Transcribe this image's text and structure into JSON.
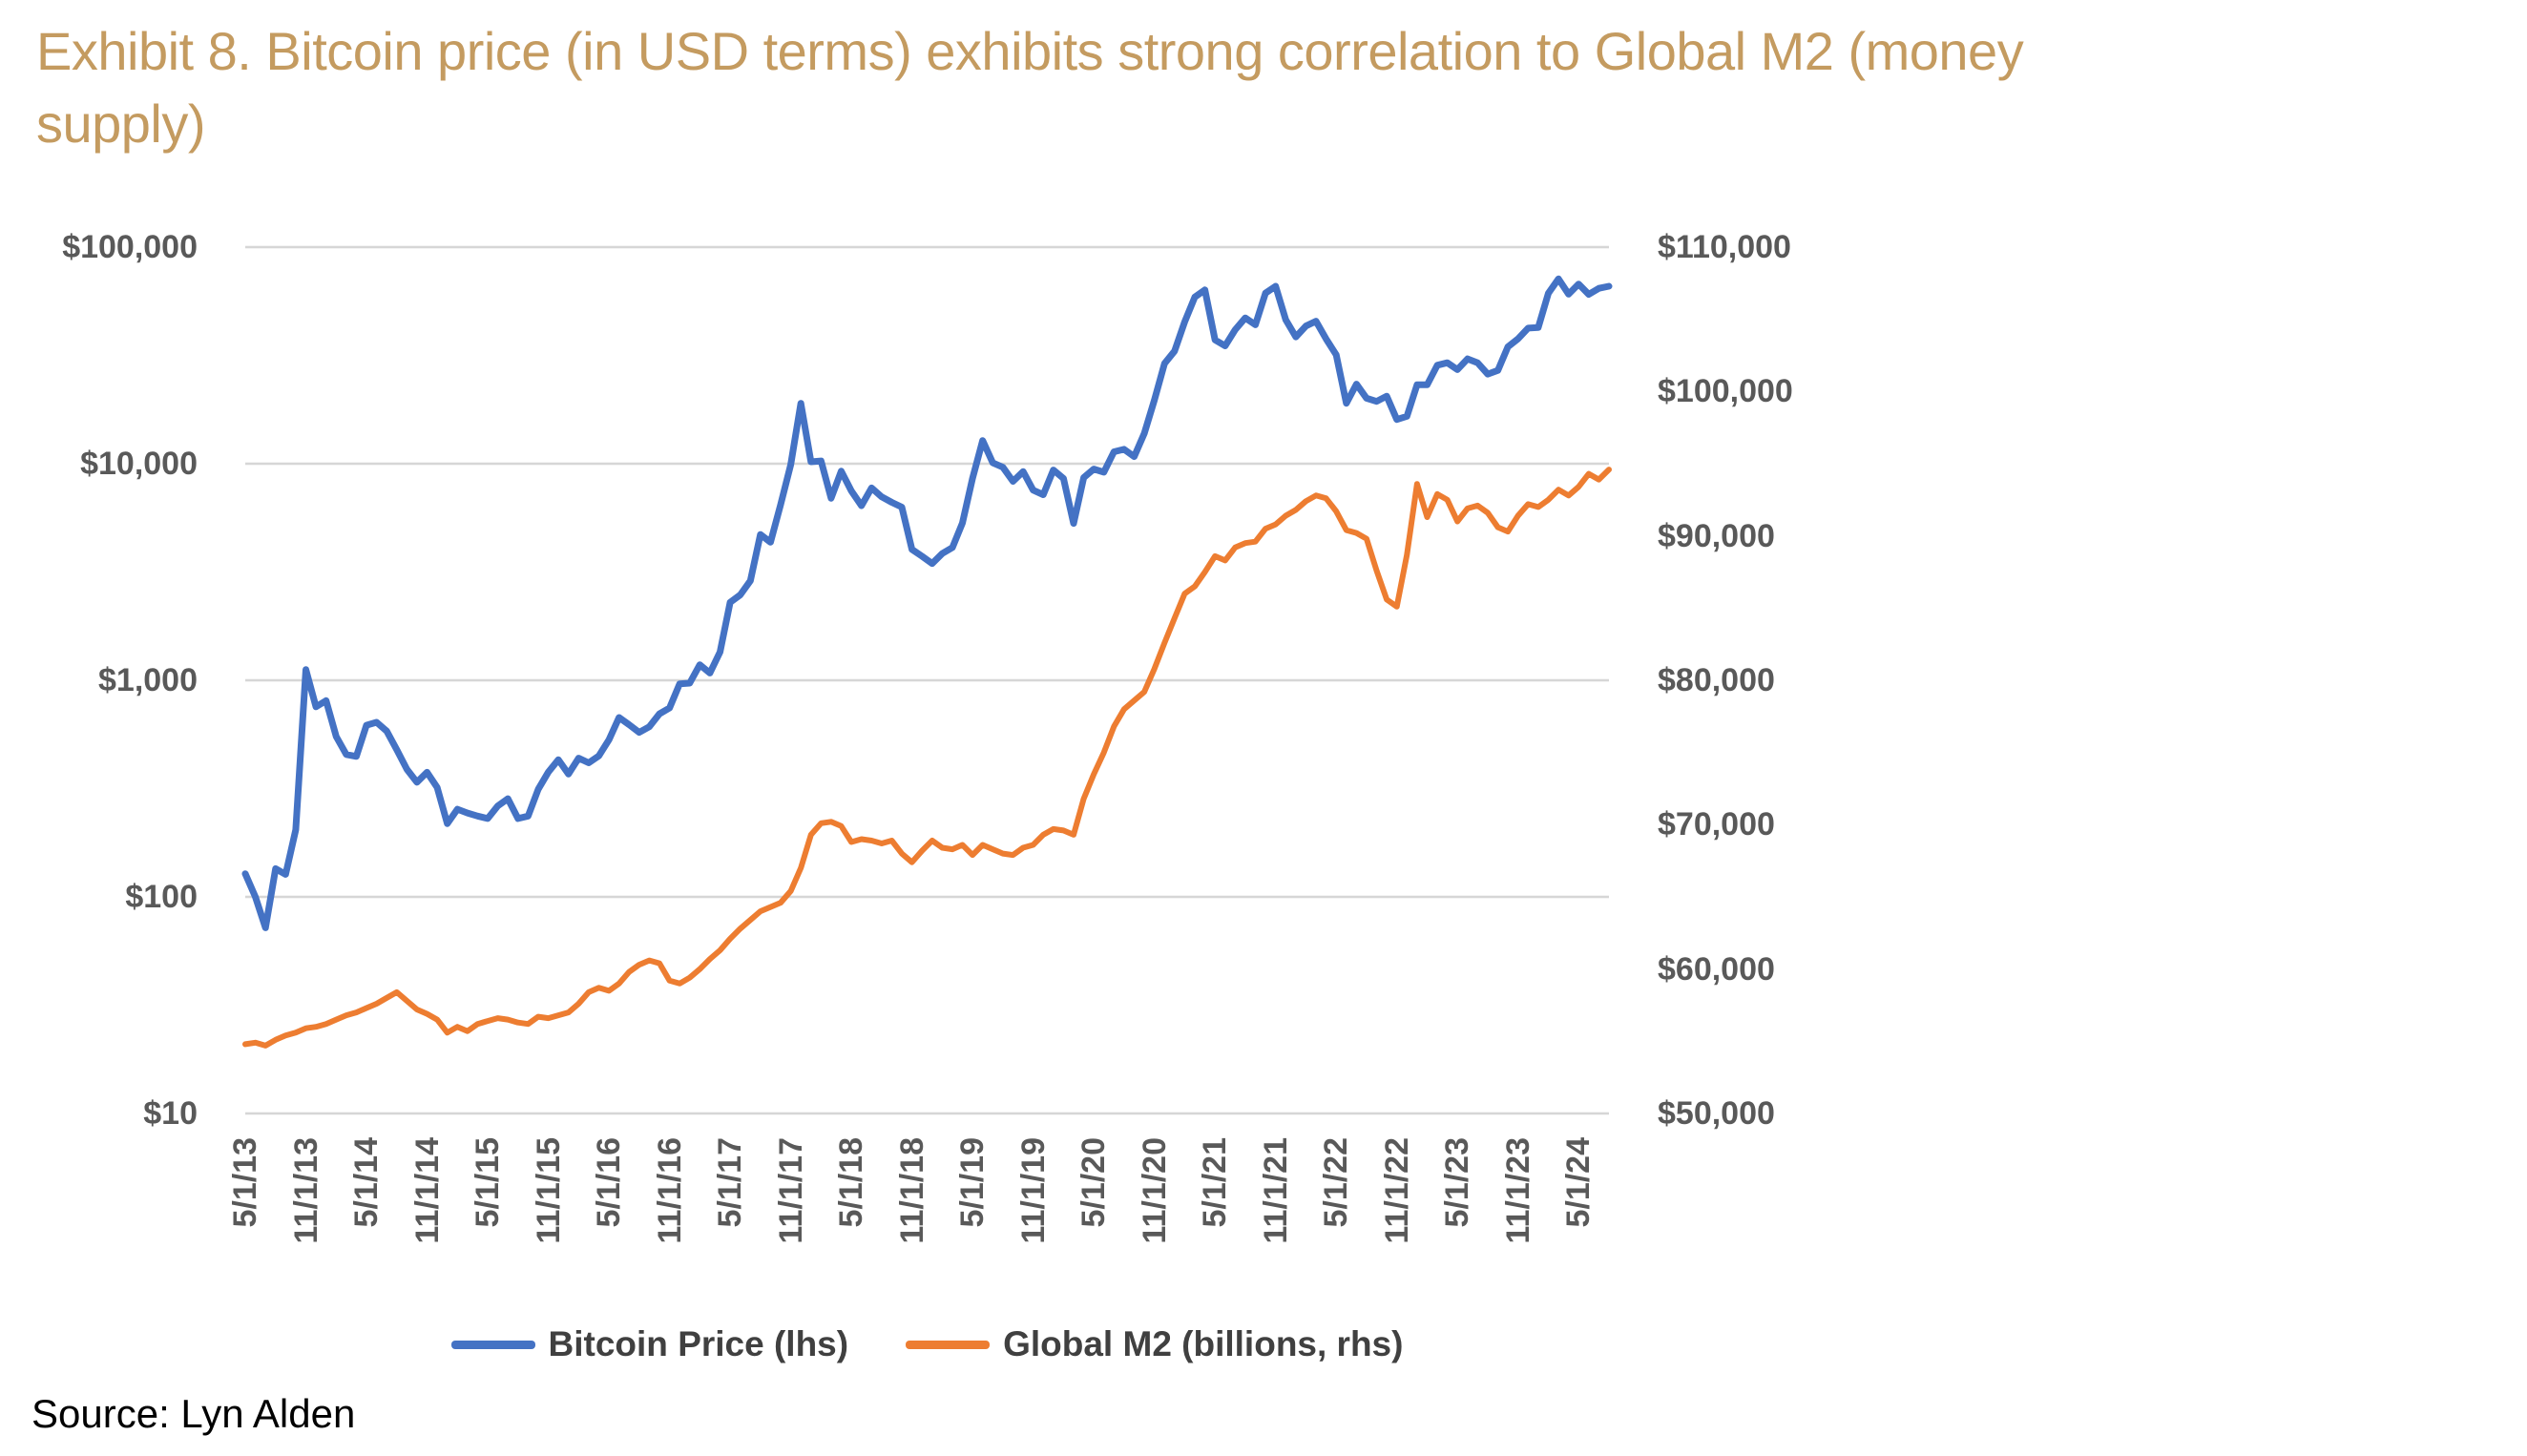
{
  "title": {
    "line1": "Exhibit 8. Bitcoin price (in USD terms) exhibits strong correlation to Global M2 (money",
    "line2": "supply)"
  },
  "source": "Source: Lyn Alden",
  "legend": [
    {
      "label": "Bitcoin Price (lhs)",
      "color": "#4472C4"
    },
    {
      "label": "Global M2 (billions, rhs)",
      "color": "#ED7D31"
    }
  ],
  "colors": {
    "title": "#C49B60",
    "axis_text": "#595959",
    "legend_text": "#404040",
    "gridline": "#D6D6D6",
    "bitcoin_line": "#4472C4",
    "m2_line": "#ED7D31"
  },
  "chart_data": {
    "type": "line",
    "title": "Bitcoin price vs Global M2",
    "x_start": "5/1/2013",
    "x_step": "1 month",
    "x_end": "8/1/2024",
    "x_tick_labels": [
      "5/1/13",
      "11/1/13",
      "5/1/14",
      "11/1/14",
      "5/1/15",
      "11/1/15",
      "5/1/16",
      "11/1/16",
      "5/1/17",
      "11/1/17",
      "5/1/18",
      "11/1/18",
      "5/1/19",
      "11/1/19",
      "5/1/20",
      "11/1/20",
      "5/1/21",
      "11/1/21",
      "5/1/22",
      "11/1/22",
      "5/1/23",
      "11/1/23",
      "5/1/24"
    ],
    "x_ticks_every_n_months": 6,
    "grid": true,
    "legend_position": "bottom",
    "left_axis": {
      "scale": "log",
      "range": [
        10,
        100000
      ],
      "tick_labels": [
        "$100,000",
        "$10,000",
        "$1,000",
        "$100",
        "$10"
      ],
      "series_name": "Bitcoin Price (lhs)"
    },
    "right_axis": {
      "scale": "linear",
      "range": [
        50000,
        110000
      ],
      "tick_labels": [
        "$110,000",
        "$100,000",
        "$90,000",
        "$80,000",
        "$70,000",
        "$60,000",
        "$50,000"
      ],
      "series_name": "Global M2 (billions, rhs)"
    },
    "series": [
      {
        "name": "Bitcoin Price (lhs)",
        "axis": "left",
        "color": "#4472C4",
        "values": [
          128,
          100,
          72,
          135,
          127,
          204,
          1120,
          754,
          806,
          550,
          454,
          445,
          620,
          640,
          583,
          478,
          388,
          338,
          376,
          320,
          218,
          254,
          244,
          236,
          230,
          263,
          284,
          230,
          236,
          314,
          377,
          430,
          369,
          437,
          416,
          448,
          531,
          673,
          624,
          575,
          610,
          700,
          745,
          963,
          970,
          1180,
          1080,
          1350,
          2290,
          2480,
          2880,
          4710,
          4340,
          6470,
          9900,
          19000,
          10200,
          10300,
          6930,
          9240,
          7490,
          6400,
          7730,
          7030,
          6630,
          6300,
          4020,
          3740,
          3460,
          3850,
          4100,
          5320,
          8560,
          12800,
          10090,
          9630,
          8290,
          9200,
          7550,
          7190,
          9350,
          8550,
          5300,
          8620,
          9450,
          9140,
          11350,
          11650,
          10780,
          13800,
          19700,
          29000,
          33100,
          45200,
          58800,
          63500,
          37300,
          35000,
          41550,
          47100,
          43800,
          61300,
          66000,
          46200,
          38500,
          43200,
          45500,
          37700,
          31800,
          19000,
          23300,
          20050,
          19400,
          20500,
          16000,
          16550,
          23130,
          23140,
          28480,
          29250,
          27200,
          30480,
          29230,
          25930,
          26970,
          34660,
          37720,
          42280,
          42580,
          61200,
          71300,
          60640,
          67540,
          60500,
          64500,
          66000
        ]
      },
      {
        "name": "Global M2 (billions, rhs)",
        "axis": "right",
        "color": "#ED7D31",
        "values": [
          54800,
          54900,
          54700,
          55100,
          55400,
          55600,
          55900,
          56000,
          56200,
          56500,
          56800,
          57000,
          57300,
          57600,
          58000,
          58400,
          57800,
          57200,
          56900,
          56500,
          55600,
          56000,
          55700,
          56200,
          56400,
          56600,
          56500,
          56300,
          56200,
          56700,
          56600,
          56800,
          57000,
          57600,
          58400,
          58700,
          58500,
          59000,
          59800,
          60300,
          60600,
          60400,
          59200,
          59000,
          59400,
          60000,
          60700,
          61300,
          62100,
          62800,
          63400,
          64000,
          64300,
          64600,
          65400,
          67000,
          69300,
          70100,
          70200,
          69900,
          68800,
          69000,
          68900,
          68700,
          68900,
          68000,
          67400,
          68200,
          68900,
          68400,
          68300,
          68600,
          67900,
          68600,
          68300,
          68000,
          67900,
          68400,
          68600,
          69300,
          69700,
          69600,
          69300,
          71800,
          73500,
          75000,
          76800,
          78000,
          78600,
          79200,
          80800,
          82600,
          84300,
          86000,
          86500,
          87500,
          88600,
          88300,
          89200,
          89500,
          89600,
          90500,
          90800,
          91400,
          91800,
          92400,
          92800,
          92600,
          91700,
          90400,
          90200,
          89800,
          87600,
          85600,
          85100,
          88700,
          93600,
          91300,
          92900,
          92500,
          91000,
          91900,
          92100,
          91600,
          90600,
          90300,
          91400,
          92200,
          92000,
          92500,
          93200,
          92800,
          93400,
          94300,
          93900,
          94600
        ]
      }
    ]
  }
}
